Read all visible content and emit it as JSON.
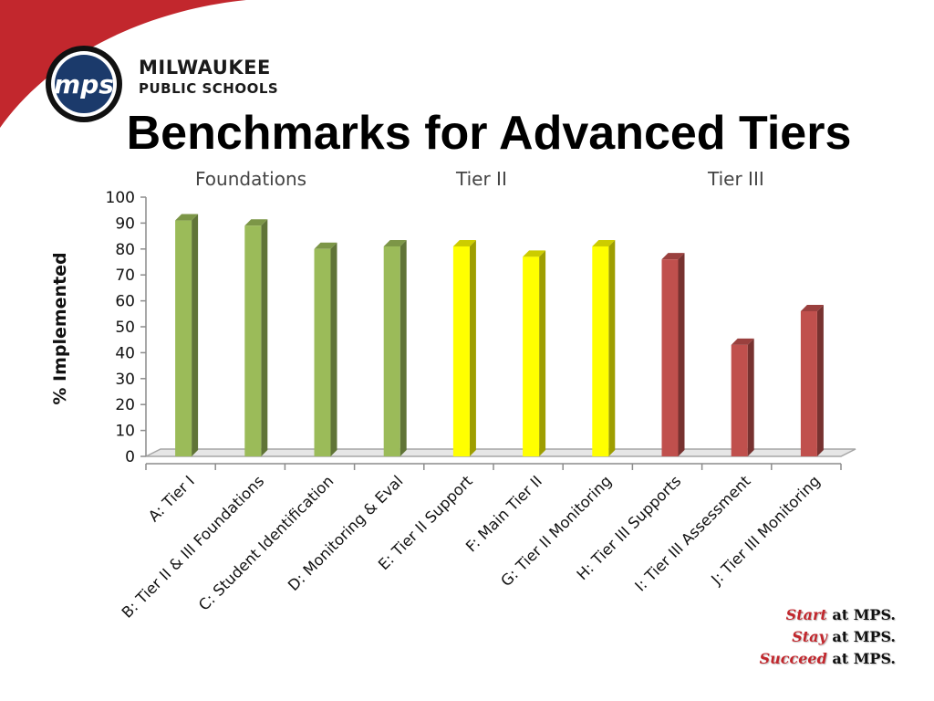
{
  "brand": {
    "logo_text": "mps",
    "org_line1": "MILWAUKEE",
    "org_line2": "PUBLIC SCHOOLS",
    "colors": {
      "red": "#c2272d",
      "navy": "#1b3a6b"
    }
  },
  "slide": {
    "title": "Benchmarks for Advanced Tiers"
  },
  "groups": [
    "Foundations",
    "Tier II",
    "Tier III"
  ],
  "tagline": [
    {
      "accent": "Start",
      "rest": " at MPS."
    },
    {
      "accent": "Stay",
      "rest": " at MPS."
    },
    {
      "accent": "Succeed",
      "rest": " at MPS."
    }
  ],
  "chart_data": {
    "type": "bar",
    "ylabel": "% Implemented",
    "xlabel": "",
    "ylim": [
      0,
      100
    ],
    "yticks": [
      0,
      10,
      20,
      30,
      40,
      50,
      60,
      70,
      80,
      90,
      100
    ],
    "categories": [
      "A: Tier I",
      "B: Tier II & III Foundations",
      "C: Student Identification",
      "D: Monitoring & Eval",
      "E: Tier II Support",
      "F: Main Tier II",
      "G: Tier II Monitoring",
      "H: Tier III Supports",
      "I: Tier III Assessment",
      "J: Tier III Monitoring"
    ],
    "values": [
      91,
      89,
      80,
      81,
      81,
      77,
      81,
      76,
      43,
      56
    ],
    "bar_colors": [
      "#9bbb59",
      "#9bbb59",
      "#9bbb59",
      "#9bbb59",
      "#ffff00",
      "#ffff00",
      "#ffff00",
      "#c0504d",
      "#c0504d",
      "#c0504d"
    ],
    "grid": false,
    "legend": "none"
  }
}
